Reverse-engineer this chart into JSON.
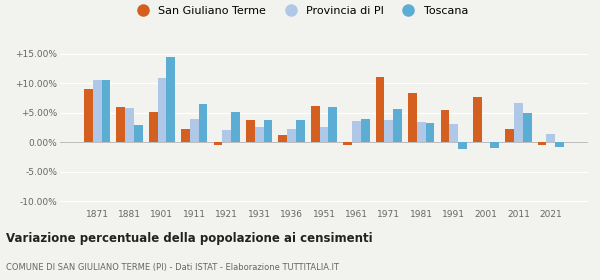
{
  "years": [
    1871,
    1881,
    1901,
    1911,
    1921,
    1931,
    1936,
    1951,
    1961,
    1971,
    1981,
    1991,
    2001,
    2011,
    2021
  ],
  "san_giuliano": [
    9.0,
    6.0,
    5.2,
    2.2,
    -0.4,
    3.7,
    1.3,
    6.1,
    -0.5,
    11.0,
    8.4,
    5.5,
    7.7,
    2.3,
    -0.5
  ],
  "provincia_pi": [
    10.5,
    5.8,
    10.8,
    4.0,
    2.0,
    2.5,
    2.2,
    2.5,
    3.6,
    3.7,
    3.5,
    3.1,
    0.0,
    6.7,
    1.4
  ],
  "toscana": [
    10.5,
    3.0,
    14.5,
    6.5,
    5.2,
    3.8,
    3.8,
    6.0,
    4.0,
    5.6,
    3.2,
    -1.1,
    -1.0,
    5.0,
    -0.8
  ],
  "color_san_giuliano": "#d45f1e",
  "color_provincia": "#b0c8e8",
  "color_toscana": "#5badd4",
  "title": "Variazione percentuale della popolazione ai censimenti",
  "subtitle": "COMUNE DI SAN GIULIANO TERME (PI) - Dati ISTAT - Elaborazione TUTTITALIA.IT",
  "ylim": [
    -11.0,
    16.5
  ],
  "yticks": [
    -10.0,
    -5.0,
    0.0,
    5.0,
    10.0,
    15.0
  ],
  "ytick_labels": [
    "-10.00%",
    "-5.00%",
    "0.00%",
    "+5.00%",
    "+10.00%",
    "+15.00%"
  ],
  "background_color": "#f2f2ee"
}
